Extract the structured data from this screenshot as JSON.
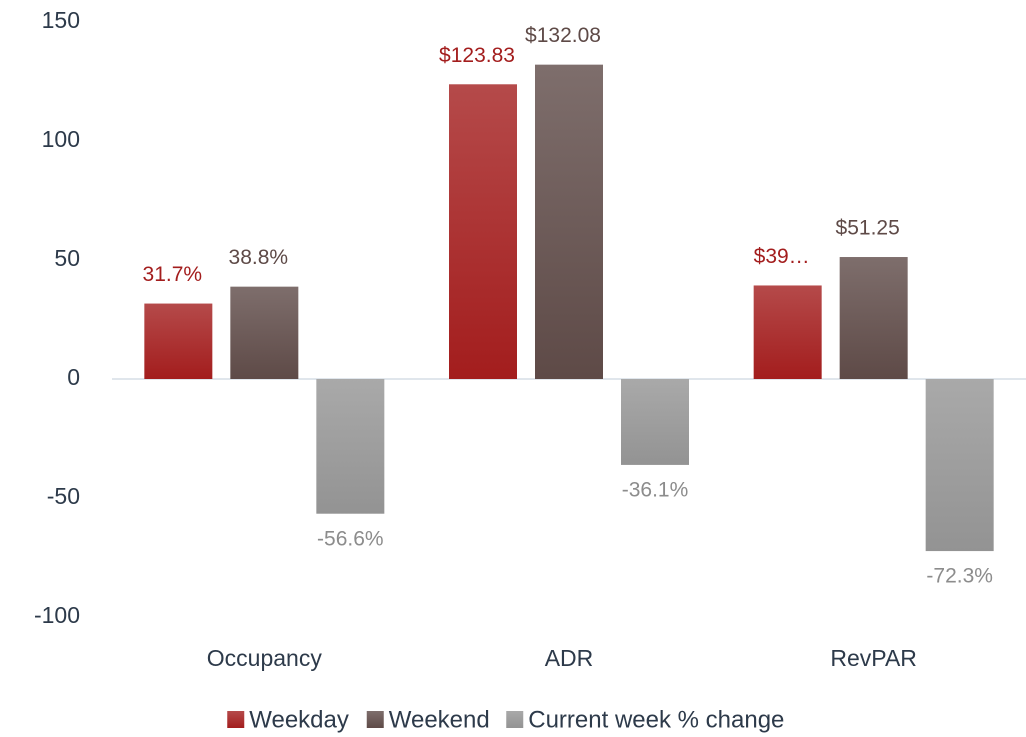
{
  "chart_data": {
    "type": "bar",
    "categories": [
      "Occupancy",
      "ADR",
      "RevPAR"
    ],
    "series": [
      {
        "name": "Weekday",
        "color": "#a31d1d",
        "values": [
          31.7,
          123.83,
          39.3
        ],
        "value_labels": [
          "31.7%",
          "$123.83",
          "$39…"
        ]
      },
      {
        "name": "Weekend",
        "color": "#5e4a47",
        "values": [
          38.8,
          132.08,
          51.25
        ],
        "value_labels": [
          "38.8%",
          "$132.08",
          "$51.25"
        ]
      },
      {
        "name": "Current week % change",
        "color": "#939393",
        "values": [
          -56.6,
          -36.1,
          -72.3
        ],
        "value_labels": [
          "-56.6%",
          "-36.1%",
          "-72.3%"
        ]
      }
    ],
    "ylim": [
      -100,
      150
    ],
    "yticks": [
      -100,
      -50,
      0,
      50,
      100,
      150
    ],
    "grid": false,
    "legend": "bottom"
  }
}
